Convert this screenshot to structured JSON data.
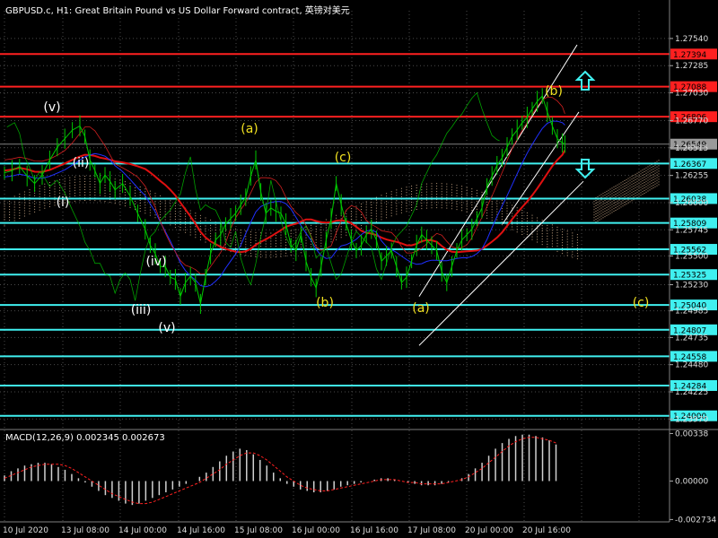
{
  "title": "GBPUSD.c, H1:  Great Britain Pound vs US Dollar Forward contract, 英镑对美元",
  "macd_label": "MACD(12,26,9) 0.002345 0.002673",
  "colors": {
    "background": "#000000",
    "grid": "#4a4a4a",
    "price": "#00c800",
    "ma_red": "#e01010",
    "ma_blue": "#2030ff",
    "envelope": "#d02020",
    "cloud": "#f0c8a0",
    "hline_cyan": "#40f0f0",
    "hline_red": "#ff2020",
    "channel": "#ffffff",
    "wave_white": "#ffffff",
    "wave_yellow": "#f0e020",
    "macd_bar": "#d0d0d0",
    "macd_signal": "#ff2020",
    "current_price_box": "#9a9a9a"
  },
  "chart_data": {
    "type": "candlestick-line",
    "symbol": "GBPUSD.c",
    "timeframe": "H1",
    "ylim": [
      1.2388,
      1.278
    ],
    "y_ticks": [
      "1.27540",
      "1.27285",
      "1.27030",
      "1.26770",
      "1.26515",
      "1.26255",
      "1.26000",
      "1.25745",
      "1.25500",
      "1.25230",
      "1.24985",
      "1.24735",
      "1.24480",
      "1.24225",
      "1.23970"
    ],
    "x_ticks": [
      "10 Jul 2020",
      "13 Jul 08:00",
      "14 Jul 00:00",
      "14 Jul 16:00",
      "15 Jul 08:00",
      "16 Jul 00:00",
      "16 Jul 16:00",
      "17 Jul 08:00",
      "20 Jul 00:00",
      "20 Jul 16:00"
    ],
    "current_price": "1.26549",
    "cyan_levels": [
      {
        "label": "1.26367",
        "value": 1.26367
      },
      {
        "label": "1.26038",
        "value": 1.26038
      },
      {
        "label": "1.25809",
        "value": 1.25809
      },
      {
        "label": "1.25562",
        "value": 1.25562
      },
      {
        "label": "1.25325",
        "value": 1.25325
      },
      {
        "label": "1.25040",
        "value": 1.2504
      },
      {
        "label": "1.24807",
        "value": 1.24807
      },
      {
        "label": "1.24558",
        "value": 1.24558
      },
      {
        "label": "1.24284",
        "value": 1.24284
      },
      {
        "label": "1.24000",
        "value": 1.24
      }
    ],
    "red_levels": [
      {
        "label": "1.27394",
        "value": 1.27394
      },
      {
        "label": "1.27088",
        "value": 1.27088
      },
      {
        "label": "1.26806",
        "value": 1.26806
      }
    ],
    "price_series": [
      [
        0,
        1.2628
      ],
      [
        3,
        1.263
      ],
      [
        6,
        1.2634
      ],
      [
        9,
        1.2625
      ],
      [
        12,
        1.2618
      ],
      [
        15,
        1.2626
      ],
      [
        18,
        1.264
      ],
      [
        21,
        1.2652
      ],
      [
        24,
        1.266
      ],
      [
        27,
        1.2668
      ],
      [
        30,
        1.2672
      ],
      [
        32,
        1.2662
      ],
      [
        34,
        1.264
      ],
      [
        36,
        1.263
      ],
      [
        38,
        1.2618
      ],
      [
        40,
        1.2626
      ],
      [
        42,
        1.262
      ],
      [
        44,
        1.2612
      ],
      [
        47,
        1.2618
      ],
      [
        50,
        1.2606
      ],
      [
        53,
        1.259
      ],
      [
        56,
        1.2575
      ],
      [
        58,
        1.256
      ],
      [
        60,
        1.2552
      ],
      [
        62,
        1.254
      ],
      [
        64,
        1.254
      ],
      [
        66,
        1.253
      ],
      [
        68,
        1.2528
      ],
      [
        70,
        1.2512
      ],
      [
        72,
        1.2525
      ],
      [
        74,
        1.2531
      ],
      [
        76,
        1.2525
      ],
      [
        78,
        1.2505
      ],
      [
        80,
        1.253
      ],
      [
        82,
        1.2552
      ],
      [
        84,
        1.2565
      ],
      [
        86,
        1.257
      ],
      [
        88,
        1.258
      ],
      [
        90,
        1.2585
      ],
      [
        92,
        1.259
      ],
      [
        94,
        1.2598
      ],
      [
        96,
        1.2605
      ],
      [
        98,
        1.2625
      ],
      [
        100,
        1.264
      ],
      [
        102,
        1.261
      ],
      [
        104,
        1.259
      ],
      [
        106,
        1.2595
      ],
      [
        108,
        1.2592
      ],
      [
        110,
        1.259
      ],
      [
        112,
        1.258
      ],
      [
        114,
        1.256
      ],
      [
        116,
        1.2555
      ],
      [
        118,
        1.257
      ],
      [
        120,
        1.2545
      ],
      [
        122,
        1.253
      ],
      [
        124,
        1.252
      ],
      [
        126,
        1.254
      ],
      [
        128,
        1.2565
      ],
      [
        130,
        1.2585
      ],
      [
        132,
        1.2618
      ],
      [
        134,
        1.2598
      ],
      [
        136,
        1.258
      ],
      [
        138,
        1.2565
      ],
      [
        140,
        1.2555
      ],
      [
        142,
        1.256
      ],
      [
        144,
        1.257
      ],
      [
        146,
        1.2575
      ],
      [
        148,
        1.2565
      ],
      [
        150,
        1.2545
      ],
      [
        152,
        1.255
      ],
      [
        154,
        1.2555
      ],
      [
        156,
        1.254
      ],
      [
        158,
        1.2525
      ],
      [
        160,
        1.253
      ],
      [
        162,
        1.2545
      ],
      [
        164,
        1.256
      ],
      [
        166,
        1.257
      ],
      [
        168,
        1.2565
      ],
      [
        170,
        1.256
      ],
      [
        172,
        1.2555
      ],
      [
        174,
        1.2535
      ],
      [
        176,
        1.2525
      ],
      [
        178,
        1.254
      ],
      [
        180,
        1.2555
      ],
      [
        182,
        1.2565
      ],
      [
        184,
        1.257
      ],
      [
        186,
        1.2575
      ],
      [
        188,
        1.2585
      ],
      [
        190,
        1.2595
      ],
      [
        192,
        1.2615
      ],
      [
        194,
        1.2625
      ],
      [
        196,
        1.2635
      ],
      [
        198,
        1.2642
      ],
      [
        200,
        1.2652
      ],
      [
        202,
        1.2662
      ],
      [
        204,
        1.2668
      ],
      [
        206,
        1.2675
      ],
      [
        208,
        1.268
      ],
      [
        210,
        1.2688
      ],
      [
        212,
        1.2695
      ],
      [
        214,
        1.27
      ],
      [
        216,
        1.2685
      ],
      [
        218,
        1.2672
      ],
      [
        220,
        1.266
      ],
      [
        222,
        1.2656
      ],
      [
        223,
        1.2655
      ]
    ],
    "wave_labels_white": [
      "(v)",
      "(i)",
      "(ii)",
      "(iii)",
      "(iv)",
      "(v)"
    ],
    "wave_labels_yellow": [
      "(a)",
      "(b)",
      "(c)",
      "(a)",
      "(b)",
      "(c)"
    ],
    "macd": {
      "label": "MACD(12,26,9)",
      "main": 0.002345,
      "signal": 0.002673,
      "ylim": [
        -0.0029,
        0.0036
      ],
      "y_ticks": [
        "0.00338",
        "0.00000",
        "-0.002734"
      ],
      "histogram": [
        0.0004,
        0.0007,
        0.0009,
        0.0011,
        0.0012,
        0.0013,
        0.0013,
        0.0012,
        0.001,
        0.0008,
        0.0005,
        0.0002,
        -0.0001,
        -0.0004,
        -0.0007,
        -0.001,
        -0.0012,
        -0.0014,
        -0.0016,
        -0.0017,
        -0.0016,
        -0.0014,
        -0.0012,
        -0.001,
        -0.0008,
        -0.0006,
        -0.0004,
        -0.0002,
        0.0,
        0.0003,
        0.0006,
        0.001,
        0.0014,
        0.0018,
        0.0021,
        0.0023,
        0.0022,
        0.0019,
        0.0015,
        0.0011,
        0.0006,
        0.0002,
        -0.0002,
        -0.0004,
        -0.0006,
        -0.0007,
        -0.0008,
        -0.0008,
        -0.0007,
        -0.0006,
        -0.0004,
        -0.0003,
        -0.0002,
        -0.0001,
        0.0,
        0.0001,
        0.0002,
        0.0002,
        0.0001,
        0.0,
        -0.0001,
        -0.0002,
        -0.0003,
        -0.0003,
        -0.0003,
        -0.0002,
        -0.0001,
        0.0,
        0.0002,
        0.0005,
        0.0009,
        0.0013,
        0.0018,
        0.0023,
        0.0027,
        0.003,
        0.0032,
        0.0033,
        0.0033,
        0.0032,
        0.0031,
        0.0029,
        0.0026
      ],
      "signal_series": [
        0.0002,
        0.0004,
        0.0006,
        0.0008,
        0.001,
        0.0011,
        0.0012,
        0.0012,
        0.0012,
        0.0011,
        0.0009,
        0.0006,
        0.0003,
        0.0,
        -0.0003,
        -0.0006,
        -0.0009,
        -0.0011,
        -0.0013,
        -0.0015,
        -0.0016,
        -0.0016,
        -0.0015,
        -0.0013,
        -0.0011,
        -0.0009,
        -0.0007,
        -0.0005,
        -0.0003,
        -0.0001,
        0.0002,
        0.0005,
        0.0008,
        0.0012,
        0.0015,
        0.0018,
        0.002,
        0.002,
        0.0018,
        0.0015,
        0.0011,
        0.0007,
        0.0003,
        0.0,
        -0.0003,
        -0.0005,
        -0.0006,
        -0.0007,
        -0.0007,
        -0.0006,
        -0.0005,
        -0.0004,
        -0.0003,
        -0.0002,
        -0.0001,
        0.0,
        0.0001,
        0.0001,
        0.0001,
        0.0,
        -0.0001,
        -0.0001,
        -0.0002,
        -0.0002,
        -0.0002,
        -0.0002,
        -0.0001,
        0.0,
        0.0001,
        0.0003,
        0.0006,
        0.0009,
        0.0013,
        0.0017,
        0.0021,
        0.0025,
        0.0028,
        0.003,
        0.0031,
        0.0031,
        0.003,
        0.0029,
        0.0027
      ]
    }
  }
}
